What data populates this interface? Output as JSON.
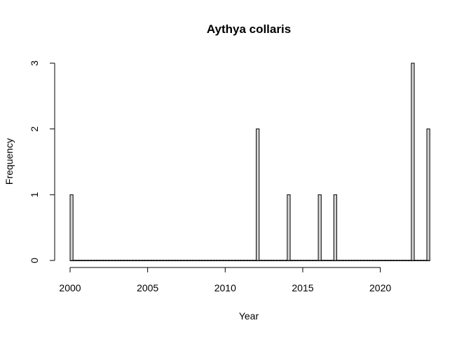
{
  "chart_data": {
    "type": "bar",
    "title": "Aythya collaris",
    "xlabel": "Year",
    "ylabel": "Frequency",
    "x": [
      2000,
      2001,
      2002,
      2003,
      2004,
      2005,
      2006,
      2007,
      2008,
      2009,
      2010,
      2011,
      2012,
      2013,
      2014,
      2015,
      2016,
      2017,
      2018,
      2019,
      2020,
      2021,
      2022,
      2023
    ],
    "values": [
      1,
      0,
      0,
      0,
      0,
      0,
      0,
      0,
      0,
      0,
      0,
      0,
      2,
      0,
      1,
      0,
      1,
      1,
      0,
      0,
      0,
      0,
      3,
      2
    ],
    "xlim": [
      2000,
      2023
    ],
    "ylim": [
      0,
      3
    ],
    "xticks": [
      "2000",
      "2005",
      "2010",
      "2015",
      "2020"
    ],
    "yticks": [
      "0",
      "1",
      "2",
      "3"
    ],
    "grid": false,
    "bar_color": "#d3d3d3",
    "edge_color": "#000000"
  }
}
